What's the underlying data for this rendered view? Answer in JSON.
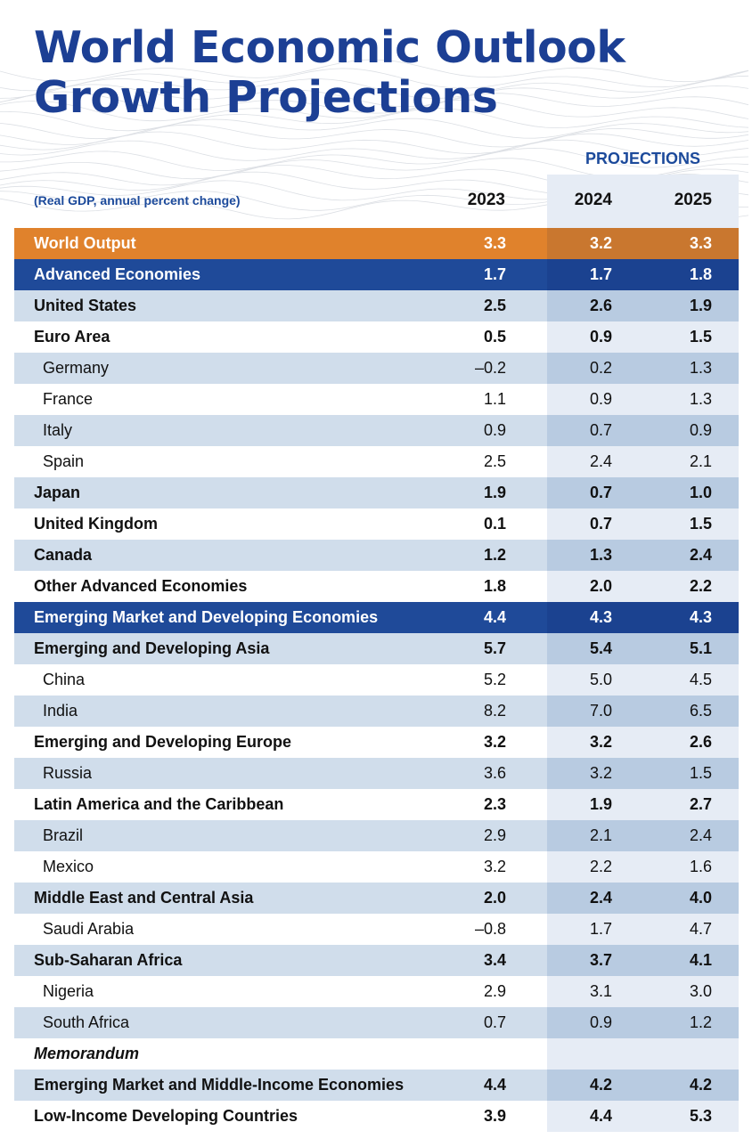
{
  "title_line1": "World Economic Outlook",
  "title_line2": "Growth Projections",
  "projections_label": "PROJECTIONS",
  "subtitle": "(Real GDP, annual percent change)",
  "years": [
    "2023",
    "2024",
    "2025"
  ],
  "rows": [
    {
      "label": "World Output",
      "values": [
        "3.3",
        "3.2",
        "3.3"
      ],
      "style": "orange"
    },
    {
      "label": "Advanced Economies",
      "values": [
        "1.7",
        "1.7",
        "1.8"
      ],
      "style": "blue"
    },
    {
      "label": "United States",
      "values": [
        "2.5",
        "2.6",
        "1.9"
      ],
      "style": "shaded",
      "level": 1
    },
    {
      "label": "Euro Area",
      "values": [
        "0.5",
        "0.9",
        "1.5"
      ],
      "style": "white",
      "level": 1
    },
    {
      "label": "Germany",
      "values": [
        "–0.2",
        "0.2",
        "1.3"
      ],
      "style": "shaded",
      "level": 2
    },
    {
      "label": "France",
      "values": [
        "1.1",
        "0.9",
        "1.3"
      ],
      "style": "white",
      "level": 2
    },
    {
      "label": "Italy",
      "values": [
        "0.9",
        "0.7",
        "0.9"
      ],
      "style": "shaded",
      "level": 2
    },
    {
      "label": "Spain",
      "values": [
        "2.5",
        "2.4",
        "2.1"
      ],
      "style": "white",
      "level": 2
    },
    {
      "label": "Japan",
      "values": [
        "1.9",
        "0.7",
        "1.0"
      ],
      "style": "shaded",
      "level": 1
    },
    {
      "label": "United Kingdom",
      "values": [
        "0.1",
        "0.7",
        "1.5"
      ],
      "style": "white",
      "level": 1
    },
    {
      "label": "Canada",
      "values": [
        "1.2",
        "1.3",
        "2.4"
      ],
      "style": "shaded",
      "level": 1
    },
    {
      "label": "Other Advanced Economies",
      "values": [
        "1.8",
        "2.0",
        "2.2"
      ],
      "style": "white",
      "level": 1
    },
    {
      "label": "Emerging Market and Developing Economies",
      "values": [
        "4.4",
        "4.3",
        "4.3"
      ],
      "style": "blue"
    },
    {
      "label": "Emerging and Developing Asia",
      "values": [
        "5.7",
        "5.4",
        "5.1"
      ],
      "style": "shaded",
      "level": 1
    },
    {
      "label": "China",
      "values": [
        "5.2",
        "5.0",
        "4.5"
      ],
      "style": "white",
      "level": 2
    },
    {
      "label": "India",
      "values": [
        "8.2",
        "7.0",
        "6.5"
      ],
      "style": "shaded",
      "level": 2
    },
    {
      "label": "Emerging and Developing Europe",
      "values": [
        "3.2",
        "3.2",
        "2.6"
      ],
      "style": "white",
      "level": 1
    },
    {
      "label": "Russia",
      "values": [
        "3.6",
        "3.2",
        "1.5"
      ],
      "style": "shaded",
      "level": 2
    },
    {
      "label": "Latin America and the Caribbean",
      "values": [
        "2.3",
        "1.9",
        "2.7"
      ],
      "style": "white",
      "level": 1
    },
    {
      "label": "Brazil",
      "values": [
        "2.9",
        "2.1",
        "2.4"
      ],
      "style": "shaded",
      "level": 2
    },
    {
      "label": "Mexico",
      "values": [
        "3.2",
        "2.2",
        "1.6"
      ],
      "style": "white",
      "level": 2
    },
    {
      "label": "Middle East and Central Asia",
      "values": [
        "2.0",
        "2.4",
        "4.0"
      ],
      "style": "shaded",
      "level": 1
    },
    {
      "label": "Saudi Arabia",
      "values": [
        "–0.8",
        "1.7",
        "4.7"
      ],
      "style": "white",
      "level": 2
    },
    {
      "label": "Sub-Saharan Africa",
      "values": [
        "3.4",
        "3.7",
        "4.1"
      ],
      "style": "shaded",
      "level": 1
    },
    {
      "label": "Nigeria",
      "values": [
        "2.9",
        "3.1",
        "3.0"
      ],
      "style": "white",
      "level": 2
    },
    {
      "label": "South Africa",
      "values": [
        "0.7",
        "0.9",
        "1.2"
      ],
      "style": "shaded",
      "level": 2
    },
    {
      "label": "Memorandum",
      "values": [
        "",
        "",
        ""
      ],
      "style": "memo"
    },
    {
      "label": "Emerging Market and Middle-Income Economies",
      "values": [
        "4.4",
        "4.2",
        "4.2"
      ],
      "style": "shaded",
      "level": 1
    },
    {
      "label": "Low-Income Developing Countries",
      "values": [
        "3.9",
        "4.4",
        "5.3"
      ],
      "style": "white",
      "level": 1
    }
  ],
  "colors": {
    "title": "#1c3f94",
    "world_output": "#e0822c",
    "group_header": "#1f4a99",
    "shaded_row": "#d0ddeb",
    "projection_shade": "#e6ecf5"
  }
}
